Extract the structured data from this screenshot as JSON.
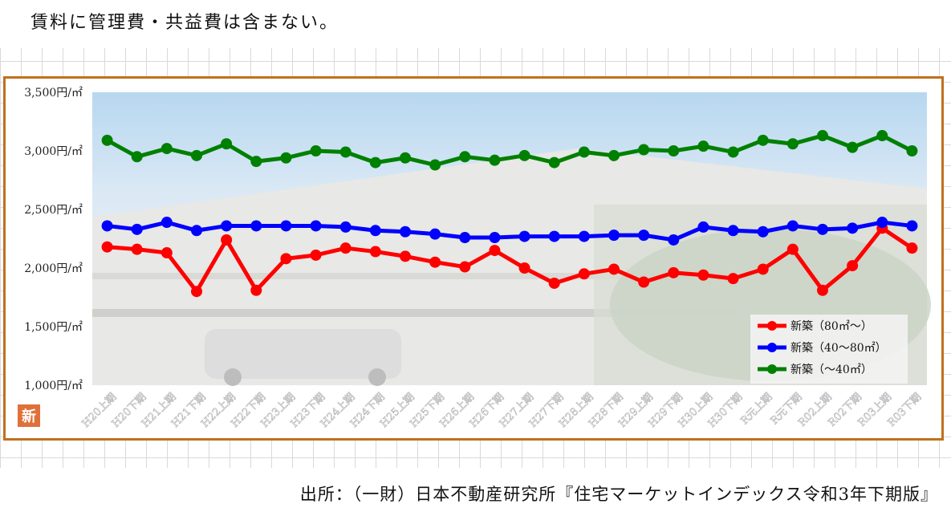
{
  "header": {
    "note": "賃料に管理費・共益費は含まない。"
  },
  "footer": {
    "source": "出所：（一財）日本不動産研究所『住宅マーケットインデックス令和3年下期版』"
  },
  "logo": {
    "text": "新"
  },
  "colors": {
    "frame": "#c0701e",
    "series": [
      "#ff0000",
      "#0000ff",
      "#008000"
    ]
  },
  "chart_data": {
    "type": "line",
    "title": "",
    "xlabel": "",
    "ylabel": "",
    "ylim": [
      1000,
      3500
    ],
    "yticks": [
      "1,000円/㎡",
      "1,500円/㎡",
      "2,000円/㎡",
      "2,500円/㎡",
      "3,000円/㎡",
      "3,500円/㎡"
    ],
    "ytick_values": [
      1000,
      1500,
      2000,
      2500,
      3000,
      3500
    ],
    "grid": false,
    "legend_position": "bottom-right",
    "categories": [
      "H20上期",
      "H20下期",
      "H21上期",
      "H21下期",
      "H22上期",
      "H22下期",
      "H23上期",
      "H23下期",
      "H24上期",
      "H24下期",
      "H25上期",
      "H25下期",
      "H26上期",
      "H26下期",
      "H27上期",
      "H27下期",
      "H28上期",
      "H28下期",
      "H29上期",
      "H29下期",
      "H30上期",
      "H30下期",
      "R元上期",
      "R元下期",
      "R02上期",
      "R02下期",
      "R03上期",
      "R03下期"
    ],
    "series": [
      {
        "name": "新築（80㎡～）",
        "color": "#ff0000",
        "values": [
          2180,
          2160,
          2130,
          1800,
          2240,
          1810,
          2080,
          2110,
          2170,
          2140,
          2100,
          2050,
          2010,
          2150,
          2000,
          1870,
          1950,
          1990,
          1880,
          1960,
          1940,
          1910,
          1990,
          2160,
          1810,
          2020,
          2340,
          2170
        ]
      },
      {
        "name": "新築（40～80㎡）",
        "color": "#0000ff",
        "values": [
          2360,
          2330,
          2390,
          2320,
          2360,
          2360,
          2360,
          2360,
          2350,
          2320,
          2310,
          2290,
          2260,
          2260,
          2270,
          2270,
          2270,
          2280,
          2280,
          2240,
          2350,
          2320,
          2310,
          2360,
          2330,
          2340,
          2390,
          2360
        ]
      },
      {
        "name": "新築（～40㎡）",
        "color": "#008000",
        "values": [
          3090,
          2950,
          3020,
          2960,
          3060,
          2910,
          2940,
          3000,
          2990,
          2900,
          2940,
          2880,
          2950,
          2920,
          2960,
          2900,
          2990,
          2960,
          3010,
          3000,
          3040,
          2990,
          3090,
          3060,
          3130,
          3030,
          3130,
          3000
        ]
      }
    ]
  }
}
